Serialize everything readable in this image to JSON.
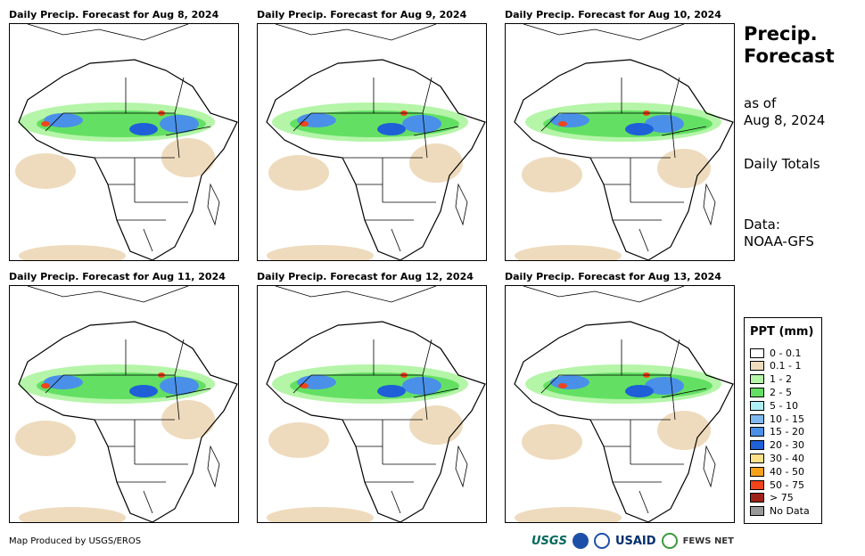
{
  "panels": [
    {
      "title": "Daily Precip. Forecast for Aug 8, 2024"
    },
    {
      "title": "Daily Precip. Forecast for Aug 9, 2024"
    },
    {
      "title": "Daily Precip. Forecast for Aug 10, 2024"
    },
    {
      "title": "Daily Precip. Forecast for Aug 11, 2024"
    },
    {
      "title": "Daily Precip. Forecast for Aug 12, 2024"
    },
    {
      "title": "Daily Precip. Forecast for Aug 13, 2024"
    }
  ],
  "sidebar": {
    "title_line1": "Precip.",
    "title_line2": "Forecast",
    "as_of_label": "as of",
    "as_of_date": "Aug 8, 2024",
    "totals": "Daily Totals",
    "data_label": "Data:",
    "data_source": "NOAA-GFS"
  },
  "legend": {
    "title": "PPT (mm)",
    "items": [
      {
        "label": "0 - 0.1",
        "color": "#ffffff"
      },
      {
        "label": "0.1 - 1",
        "color": "#eedbbd"
      },
      {
        "label": "1 - 2",
        "color": "#b4f5a8"
      },
      {
        "label": "2 - 5",
        "color": "#63e063"
      },
      {
        "label": "5 - 10",
        "color": "#b0f0f4"
      },
      {
        "label": "10 - 15",
        "color": "#80b8f0"
      },
      {
        "label": "15 - 20",
        "color": "#4a90e8"
      },
      {
        "label": "20 - 30",
        "color": "#1f5fd8"
      },
      {
        "label": "30 - 40",
        "color": "#fde08a"
      },
      {
        "label": "40 - 50",
        "color": "#f8a21b"
      },
      {
        "label": "50 - 75",
        "color": "#f0441a"
      },
      {
        "label": "> 75",
        "color": "#a0201a"
      },
      {
        "label": "No Data",
        "color": "#999999"
      }
    ]
  },
  "footer": {
    "credit": "Map Produced by USGS/EROS"
  },
  "logos": {
    "usgs": "USGS",
    "usaid": "USAID",
    "fews": "FEWS NET"
  },
  "colors": {
    "dry": "#eedbbd",
    "light": "#b4f5a8",
    "moderate": "#63e063",
    "heavy": "#4a90e8",
    "veryheavy": "#1f5fd8",
    "extreme": "#f0441a"
  }
}
